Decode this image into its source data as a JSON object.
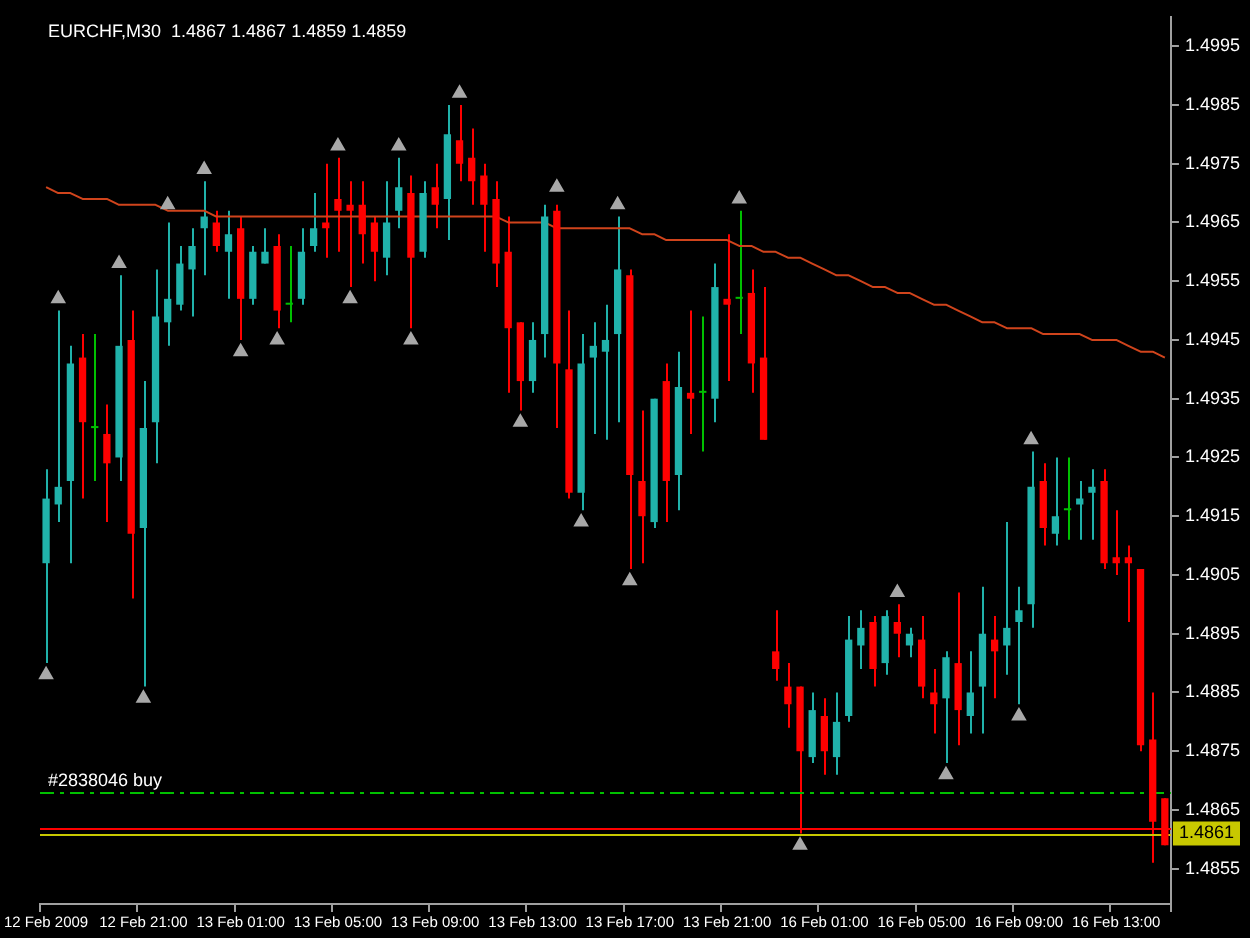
{
  "chart_data": {
    "type": "candlestick",
    "title": "EURCHF,M30  1.4867 1.4867 1.4859 1.4859",
    "categories": [
      "12 Feb 2009",
      null,
      null,
      null,
      null,
      null,
      null,
      null,
      "12 Feb 21:00",
      null,
      null,
      null,
      null,
      null,
      null,
      null,
      "13 Feb 01:00",
      null,
      null,
      null,
      null,
      null,
      null,
      null,
      "13 Feb 05:00",
      null,
      null,
      null,
      null,
      null,
      null,
      null,
      "13 Feb 09:00",
      null,
      null,
      null,
      null,
      null,
      null,
      null,
      "13 Feb 13:00",
      null,
      null,
      null,
      null,
      null,
      null,
      null,
      "13 Feb 17:00",
      null,
      null,
      null,
      null,
      null,
      null,
      null,
      "13 Feb 21:00",
      null,
      null,
      null,
      null,
      null,
      null,
      null,
      "16 Feb 01:00",
      null,
      null,
      null,
      null,
      null,
      null,
      null,
      "16 Feb 05:00",
      null,
      null,
      null,
      null,
      null,
      null,
      null,
      "16 Feb 09:00",
      null,
      null,
      null,
      null,
      null,
      null,
      null,
      "16 Feb 13:00",
      null,
      null,
      null,
      null
    ],
    "ohlc": [
      [
        1.4907,
        1.4923,
        1.489,
        1.4918
      ],
      [
        1.4917,
        1.495,
        1.4914,
        1.492
      ],
      [
        1.4921,
        1.4944,
        1.4907,
        1.4941
      ],
      [
        1.4942,
        1.4946,
        1.4918,
        1.4931
      ],
      [
        1.493,
        1.4946,
        1.4921,
        1.493
      ],
      [
        1.4929,
        1.4934,
        1.4914,
        1.4924
      ],
      [
        1.4925,
        1.4956,
        1.4921,
        1.4944
      ],
      [
        1.4945,
        1.495,
        1.4901,
        1.4912
      ],
      [
        1.4913,
        1.4938,
        1.4886,
        1.493
      ],
      [
        1.4931,
        1.4957,
        1.4924,
        1.4949
      ],
      [
        1.4948,
        1.4965,
        1.4944,
        1.4952
      ],
      [
        1.4951,
        1.4961,
        1.495,
        1.4958
      ],
      [
        1.4957,
        1.4964,
        1.4949,
        1.4961
      ],
      [
        1.4964,
        1.4972,
        1.4956,
        1.4966
      ],
      [
        1.4965,
        1.4967,
        1.496,
        1.4961
      ],
      [
        1.496,
        1.4967,
        1.4952,
        1.4963
      ],
      [
        1.4964,
        1.4966,
        1.4945,
        1.4952
      ],
      [
        1.4952,
        1.4961,
        1.4951,
        1.496
      ],
      [
        1.4958,
        1.4964,
        1.4958,
        1.496
      ],
      [
        1.4961,
        1.4963,
        1.4947,
        1.495
      ],
      [
        1.4951,
        1.4961,
        1.4948,
        1.4951
      ],
      [
        1.4952,
        1.4964,
        1.4951,
        1.496
      ],
      [
        1.4961,
        1.497,
        1.496,
        1.4964
      ],
      [
        1.4965,
        1.4975,
        1.4959,
        1.4964
      ],
      [
        1.4969,
        1.4976,
        1.496,
        1.4967
      ],
      [
        1.4968,
        1.4972,
        1.4954,
        1.4967
      ],
      [
        1.4968,
        1.4972,
        1.4958,
        1.4963
      ],
      [
        1.4965,
        1.4966,
        1.4955,
        1.496
      ],
      [
        1.4959,
        1.4972,
        1.4956,
        1.4965
      ],
      [
        1.4967,
        1.4976,
        1.4964,
        1.4971
      ],
      [
        1.497,
        1.4973,
        1.4947,
        1.4959
      ],
      [
        1.496,
        1.4972,
        1.4959,
        1.497
      ],
      [
        1.4971,
        1.4975,
        1.4964,
        1.4968
      ],
      [
        1.4969,
        1.4985,
        1.4962,
        1.498
      ],
      [
        1.4979,
        1.4985,
        1.4972,
        1.4975
      ],
      [
        1.4976,
        1.4981,
        1.4968,
        1.4972
      ],
      [
        1.4973,
        1.4975,
        1.496,
        1.4968
      ],
      [
        1.4969,
        1.4972,
        1.4954,
        1.4958
      ],
      [
        1.496,
        1.4966,
        1.4936,
        1.4947
      ],
      [
        1.4948,
        1.4948,
        1.4933,
        1.4938
      ],
      [
        1.4938,
        1.4948,
        1.4936,
        1.4945
      ],
      [
        1.4946,
        1.4968,
        1.4942,
        1.4966
      ],
      [
        1.4967,
        1.4968,
        1.493,
        1.4941
      ],
      [
        1.494,
        1.495,
        1.4918,
        1.4919
      ],
      [
        1.4919,
        1.4946,
        1.4916,
        1.4941
      ],
      [
        1.4942,
        1.4948,
        1.4929,
        1.4944
      ],
      [
        1.4943,
        1.4951,
        1.4928,
        1.4945
      ],
      [
        1.4946,
        1.4966,
        1.4931,
        1.4957
      ],
      [
        1.4956,
        1.4957,
        1.4906,
        1.4922
      ],
      [
        1.4921,
        1.4933,
        1.4907,
        1.4915
      ],
      [
        1.4914,
        1.4935,
        1.4913,
        1.4935
      ],
      [
        1.4938,
        1.4941,
        1.4914,
        1.4921
      ],
      [
        1.4922,
        1.4943,
        1.4916,
        1.4937
      ],
      [
        1.4936,
        1.495,
        1.4929,
        1.4935
      ],
      [
        1.4936,
        1.4949,
        1.4926,
        1.4936
      ],
      [
        1.4935,
        1.4958,
        1.4931,
        1.4954
      ],
      [
        1.4952,
        1.4963,
        1.4938,
        1.4951
      ],
      [
        1.4952,
        1.4967,
        1.4946,
        1.4952
      ],
      [
        1.4953,
        1.4957,
        1.4936,
        1.4941
      ],
      [
        1.4942,
        1.4954,
        1.4928,
        1.4928
      ],
      [
        1.4892,
        1.4899,
        1.4887,
        1.4889
      ],
      [
        1.4886,
        1.489,
        1.4879,
        1.4883
      ],
      [
        1.4886,
        1.4886,
        1.4861,
        1.4875
      ],
      [
        1.4874,
        1.4885,
        1.4873,
        1.4882
      ],
      [
        1.4881,
        1.4884,
        1.4871,
        1.4875
      ],
      [
        1.4874,
        1.4885,
        1.4871,
        1.488
      ],
      [
        1.4881,
        1.4898,
        1.488,
        1.4894
      ],
      [
        1.4893,
        1.4899,
        1.4889,
        1.4896
      ],
      [
        1.4897,
        1.4898,
        1.4886,
        1.4889
      ],
      [
        1.489,
        1.4899,
        1.4888,
        1.4898
      ],
      [
        1.4897,
        1.49,
        1.4891,
        1.4895
      ],
      [
        1.4893,
        1.4896,
        1.4891,
        1.4895
      ],
      [
        1.4894,
        1.4898,
        1.4884,
        1.4886
      ],
      [
        1.4885,
        1.4889,
        1.4878,
        1.4883
      ],
      [
        1.4884,
        1.4892,
        1.4873,
        1.4891
      ],
      [
        1.489,
        1.4902,
        1.4876,
        1.4882
      ],
      [
        1.4881,
        1.4892,
        1.4878,
        1.4885
      ],
      [
        1.4886,
        1.4903,
        1.4878,
        1.4895
      ],
      [
        1.4894,
        1.4898,
        1.4884,
        1.4892
      ],
      [
        1.4893,
        1.4914,
        1.4888,
        1.4896
      ],
      [
        1.4897,
        1.4903,
        1.4883,
        1.4899
      ],
      [
        1.49,
        1.4926,
        1.4896,
        1.492
      ],
      [
        1.4921,
        1.4924,
        1.491,
        1.4913
      ],
      [
        1.4912,
        1.4925,
        1.491,
        1.4915
      ],
      [
        1.4916,
        1.4925,
        1.4911,
        1.4916
      ],
      [
        1.4917,
        1.4921,
        1.4911,
        1.4918
      ],
      [
        1.4919,
        1.4923,
        1.4911,
        1.492
      ],
      [
        1.4921,
        1.4923,
        1.4906,
        1.4907
      ],
      [
        1.4908,
        1.4916,
        1.4905,
        1.4907
      ],
      [
        1.4908,
        1.491,
        1.4897,
        1.4907
      ],
      [
        1.4906,
        1.4906,
        1.4875,
        1.4876
      ],
      [
        1.4877,
        1.4885,
        1.4856,
        1.4863
      ],
      [
        1.4867,
        1.4867,
        1.4859,
        1.4859
      ]
    ],
    "colors": [
      "#20b2aa",
      "#20b2aa",
      "#20b2aa",
      "#ff0000",
      "#00c000",
      "#ff0000",
      "#20b2aa",
      "#ff0000",
      "#20b2aa",
      "#20b2aa",
      "#20b2aa",
      "#20b2aa",
      "#20b2aa",
      "#20b2aa",
      "#ff0000",
      "#20b2aa",
      "#ff0000",
      "#20b2aa",
      "#20b2aa",
      "#ff0000",
      "#00c000",
      "#20b2aa",
      "#20b2aa",
      "#ff0000",
      "#ff0000",
      "#ff0000",
      "#ff0000",
      "#ff0000",
      "#20b2aa",
      "#20b2aa",
      "#ff0000",
      "#20b2aa",
      "#ff0000",
      "#20b2aa",
      "#ff0000",
      "#ff0000",
      "#ff0000",
      "#ff0000",
      "#ff0000",
      "#ff0000",
      "#20b2aa",
      "#20b2aa",
      "#ff0000",
      "#ff0000",
      "#20b2aa",
      "#20b2aa",
      "#20b2aa",
      "#20b2aa",
      "#ff0000",
      "#ff0000",
      "#20b2aa",
      "#ff0000",
      "#20b2aa",
      "#ff0000",
      "#00c000",
      "#20b2aa",
      "#ff0000",
      "#00c000",
      "#ff0000",
      "#ff0000",
      "#ff0000",
      "#ff0000",
      "#ff0000",
      "#20b2aa",
      "#ff0000",
      "#20b2aa",
      "#20b2aa",
      "#20b2aa",
      "#ff0000",
      "#20b2aa",
      "#ff0000",
      "#20b2aa",
      "#ff0000",
      "#ff0000",
      "#20b2aa",
      "#ff0000",
      "#20b2aa",
      "#20b2aa",
      "#ff0000",
      "#20b2aa",
      "#20b2aa",
      "#20b2aa",
      "#ff0000",
      "#20b2aa",
      "#00c000",
      "#20b2aa",
      "#20b2aa",
      "#ff0000",
      "#ff0000",
      "#ff0000",
      "#ff0000",
      "#ff0000",
      "#ff0000"
    ],
    "series": [
      {
        "type": "line",
        "color": "#d0441c",
        "values": [
          1.4971,
          1.497,
          1.497,
          1.4969,
          1.4969,
          1.4969,
          1.4968,
          1.4968,
          1.4968,
          1.4968,
          1.4967,
          1.4967,
          1.4967,
          1.4967,
          1.4966,
          1.4966,
          1.4966,
          1.4966,
          1.4966,
          1.4966,
          1.4966,
          1.4966,
          1.4966,
          1.4966,
          1.4966,
          1.4966,
          1.4966,
          1.4966,
          1.4966,
          1.4966,
          1.4966,
          1.4966,
          1.4966,
          1.4966,
          1.4966,
          1.4966,
          1.4966,
          1.4966,
          1.4965,
          1.4965,
          1.4965,
          1.4965,
          1.4964,
          1.4964,
          1.4964,
          1.4964,
          1.4964,
          1.4964,
          1.4964,
          1.4963,
          1.4963,
          1.4962,
          1.4962,
          1.4962,
          1.4962,
          1.4962,
          1.4962,
          1.4961,
          1.4961,
          1.496,
          1.496,
          1.4959,
          1.4959,
          1.4958,
          1.4957,
          1.4956,
          1.4956,
          1.4955,
          1.4954,
          1.4954,
          1.4953,
          1.4953,
          1.4952,
          1.4951,
          1.4951,
          1.495,
          1.4949,
          1.4948,
          1.4948,
          1.4947,
          1.4947,
          1.4947,
          1.4946,
          1.4946,
          1.4946,
          1.4946,
          1.4945,
          1.4945,
          1.4945,
          1.4944,
          1.4943,
          1.4943,
          1.4942
        ]
      },
      {
        "type": "scatter",
        "color": "#a8a8a8",
        "marker": "triangle",
        "values": [
          null,
          1.4952,
          null,
          null,
          null,
          null,
          1.4958,
          null,
          null,
          null,
          1.4968,
          null,
          null,
          1.4974,
          null,
          null,
          null,
          null,
          null,
          null,
          null,
          null,
          null,
          null,
          1.4978,
          null,
          null,
          null,
          null,
          1.4978,
          null,
          null,
          null,
          null,
          1.4987,
          null,
          null,
          null,
          null,
          null,
          null,
          null,
          1.4971,
          null,
          null,
          null,
          null,
          1.4968,
          null,
          null,
          null,
          null,
          null,
          null,
          null,
          null,
          null,
          1.4969,
          null,
          null,
          null,
          null,
          null,
          null,
          null,
          null,
          null,
          null,
          null,
          null,
          1.4902,
          null,
          null,
          null,
          null,
          null,
          null,
          null,
          null,
          null,
          null,
          1.4928,
          null,
          null,
          null,
          null,
          null,
          null,
          null,
          null,
          null,
          null,
          null
        ]
      },
      {
        "type": "scatter",
        "color": "#a8a8a8",
        "marker": "triangle",
        "values": [
          1.4888,
          null,
          null,
          null,
          null,
          null,
          null,
          null,
          1.4884,
          null,
          null,
          null,
          null,
          null,
          null,
          null,
          1.4943,
          null,
          null,
          1.4945,
          null,
          null,
          null,
          null,
          null,
          1.4952,
          null,
          null,
          null,
          null,
          1.4945,
          null,
          null,
          null,
          null,
          null,
          null,
          null,
          null,
          1.4931,
          null,
          null,
          null,
          null,
          1.4914,
          null,
          null,
          null,
          1.4904,
          null,
          null,
          null,
          null,
          null,
          null,
          null,
          null,
          null,
          null,
          null,
          null,
          null,
          1.4859,
          null,
          null,
          null,
          null,
          null,
          null,
          null,
          null,
          null,
          null,
          null,
          1.4871,
          null,
          null,
          null,
          null,
          null,
          1.4881,
          null,
          null,
          null,
          null,
          null,
          null,
          null,
          null,
          null,
          null,
          null,
          null
        ]
      }
    ],
    "ylim": [
      1.4849,
      1.5
    ],
    "yticks": [
      1.4855,
      1.4865,
      1.4875,
      1.4885,
      1.4895,
      1.4905,
      1.4915,
      1.4925,
      1.4935,
      1.4945,
      1.4955,
      1.4965,
      1.4975,
      1.4985,
      1.4995
    ],
    "ref_lines": [
      {
        "axis": "y",
        "value": 1.4868,
        "label": "#2838046 buy",
        "color": "#00c000",
        "line_style": "dashed"
      },
      {
        "axis": "y",
        "value": 1.4862,
        "color": "#ff0000"
      },
      {
        "axis": "y",
        "value": 1.4861,
        "label": "1.4861",
        "color": "#c8c800"
      }
    ],
    "grid": false,
    "legend": false
  }
}
